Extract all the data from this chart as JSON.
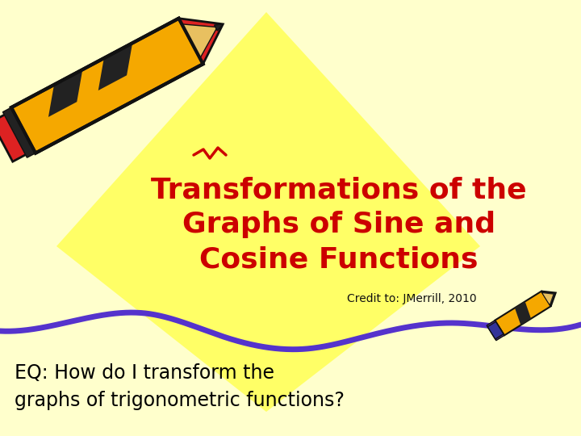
{
  "bg_color": "#FFFFCC",
  "diamond_color": "#FFFF66",
  "title_text_line1": "Transformations of the",
  "title_text_line2": "Graphs of Sine and",
  "title_text_line3": "Cosine Functions",
  "title_color": "#CC0000",
  "credit_text": "Credit to: JMerrill, 2010",
  "credit_color": "#111111",
  "eq_text_line1": "EQ: How do I transform the",
  "eq_text_line2": "graphs of trigonometric functions?",
  "eq_color": "#000000",
  "wave_color": "#5533CC",
  "fig_width": 7.2,
  "fig_height": 5.4,
  "title_fontsize": 26,
  "eq_fontsize": 17,
  "credit_fontsize": 10
}
